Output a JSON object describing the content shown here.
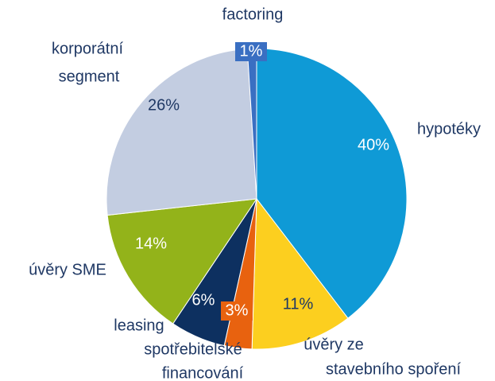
{
  "chart_data": {
    "type": "pie",
    "series": [
      {
        "name": [
          "hypotéky"
        ],
        "color": "#0f9ad6",
        "values": [
          40
        ],
        "value_labels": [
          "40%"
        ]
      },
      {
        "name": [
          "úvěry ze",
          "stavebního spoření"
        ],
        "color": "#fccf1f",
        "values": [
          11
        ],
        "value_labels": [
          "11%"
        ]
      },
      {
        "name": [
          "spotřebitelské",
          "financování"
        ],
        "color": "#e8620f",
        "values": [
          3
        ],
        "value_labels": [
          "3%"
        ]
      },
      {
        "name": [
          "leasing"
        ],
        "color": "#0d3060",
        "values": [
          6
        ],
        "value_labels": [
          "6%"
        ]
      },
      {
        "name": [
          "úvěry SME"
        ],
        "color": "#93b31a",
        "values": [
          14
        ],
        "value_labels": [
          "14%"
        ]
      },
      {
        "name": [
          "korporátní",
          "segment"
        ],
        "color": "#c3cde1",
        "values": [
          26
        ],
        "value_labels": [
          "26%"
        ]
      },
      {
        "name": [
          "factoring"
        ],
        "color": "#3a6fc2",
        "values": [
          1
        ],
        "value_labels": [
          "1%"
        ]
      }
    ]
  }
}
